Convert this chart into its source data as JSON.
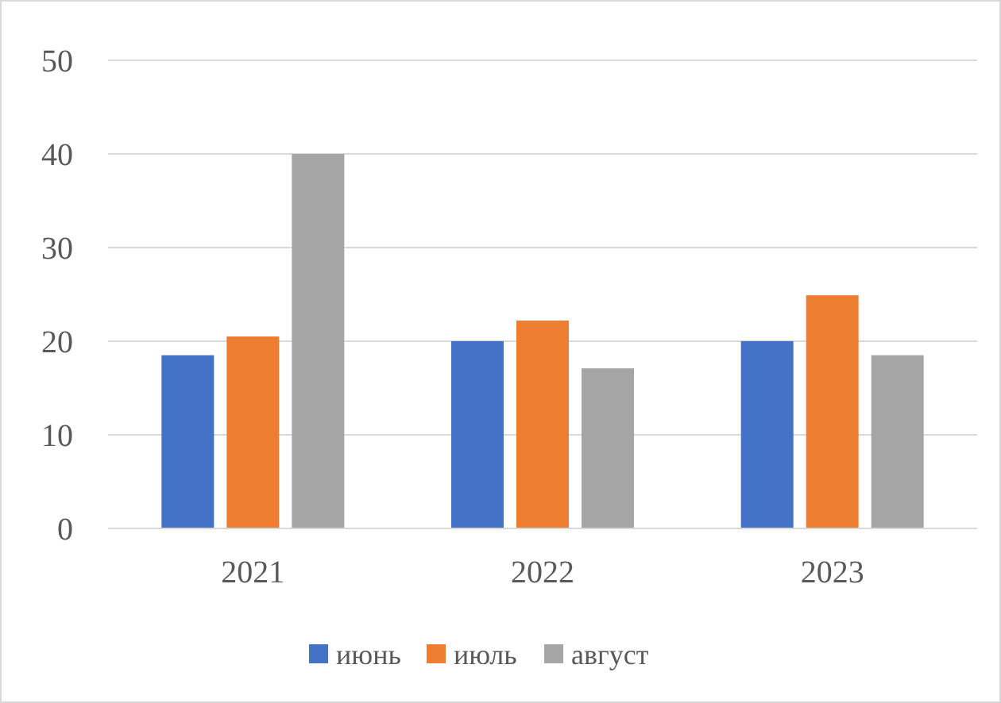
{
  "chart_data": {
    "type": "bar",
    "categories": [
      "2021",
      "2022",
      "2023"
    ],
    "series": [
      {
        "name": "июнь",
        "color": "#4472c4",
        "values": [
          18.5,
          20,
          20
        ]
      },
      {
        "name": "июль",
        "color": "#ed7d31",
        "values": [
          20.5,
          22.2,
          24.9
        ]
      },
      {
        "name": "август",
        "color": "#a5a5a5",
        "values": [
          40,
          17.1,
          18.5
        ]
      }
    ],
    "ylim": [
      0,
      50
    ],
    "yticks": [
      0,
      10,
      20,
      30,
      40,
      50
    ],
    "grid": "y",
    "legend": "bottom"
  }
}
